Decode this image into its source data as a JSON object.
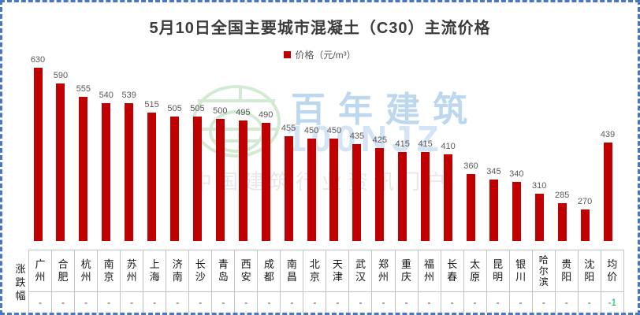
{
  "title": "5月10日全国主要城市混凝土（C30）主流价格",
  "legend": {
    "label": "价格（元/m³）"
  },
  "row_header": "涨跌幅",
  "watermark": {
    "brand": "百年建筑",
    "code": "100NJZ",
    "slogan": "中国建筑行业资讯门户"
  },
  "colors": {
    "bar": "#c00000",
    "frame_border": "#4a74c8",
    "table_border": "#c3c3c3",
    "value_label": "#595959",
    "change_down": "#00b050"
  },
  "chart_data": {
    "type": "bar",
    "title": "5月10日全国主要城市混凝土（C30）主流价格",
    "series_name": "价格（元/m³）",
    "legend_position": "top",
    "grid": false,
    "bar_color": "#c00000",
    "ylim": [
      190,
      650
    ],
    "categories": [
      "广州",
      "合肥",
      "杭州",
      "南京",
      "苏州",
      "上海",
      "济南",
      "长沙",
      "青岛",
      "西安",
      "成都",
      "南昌",
      "北京",
      "天津",
      "武汉",
      "郑州",
      "重庆",
      "福州",
      "长春",
      "太原",
      "昆明",
      "银川",
      "哈尔滨",
      "贵阳",
      "沈阳",
      "均价"
    ],
    "values": [
      630,
      590,
      555,
      540,
      539,
      515,
      505,
      505,
      500,
      495,
      490,
      455,
      450,
      450,
      435,
      425,
      415,
      415,
      410,
      360,
      345,
      340,
      310,
      285,
      270,
      439
    ],
    "changes_row_label": "涨跌幅",
    "changes": [
      "-",
      "-",
      "-",
      "-",
      "-",
      "-",
      "-",
      "-",
      "-",
      "-",
      "-",
      "-",
      "-",
      "-",
      "-",
      "-",
      "-",
      "-",
      "-",
      "-",
      "-",
      "-",
      "-",
      "-",
      "-",
      "-1"
    ]
  }
}
